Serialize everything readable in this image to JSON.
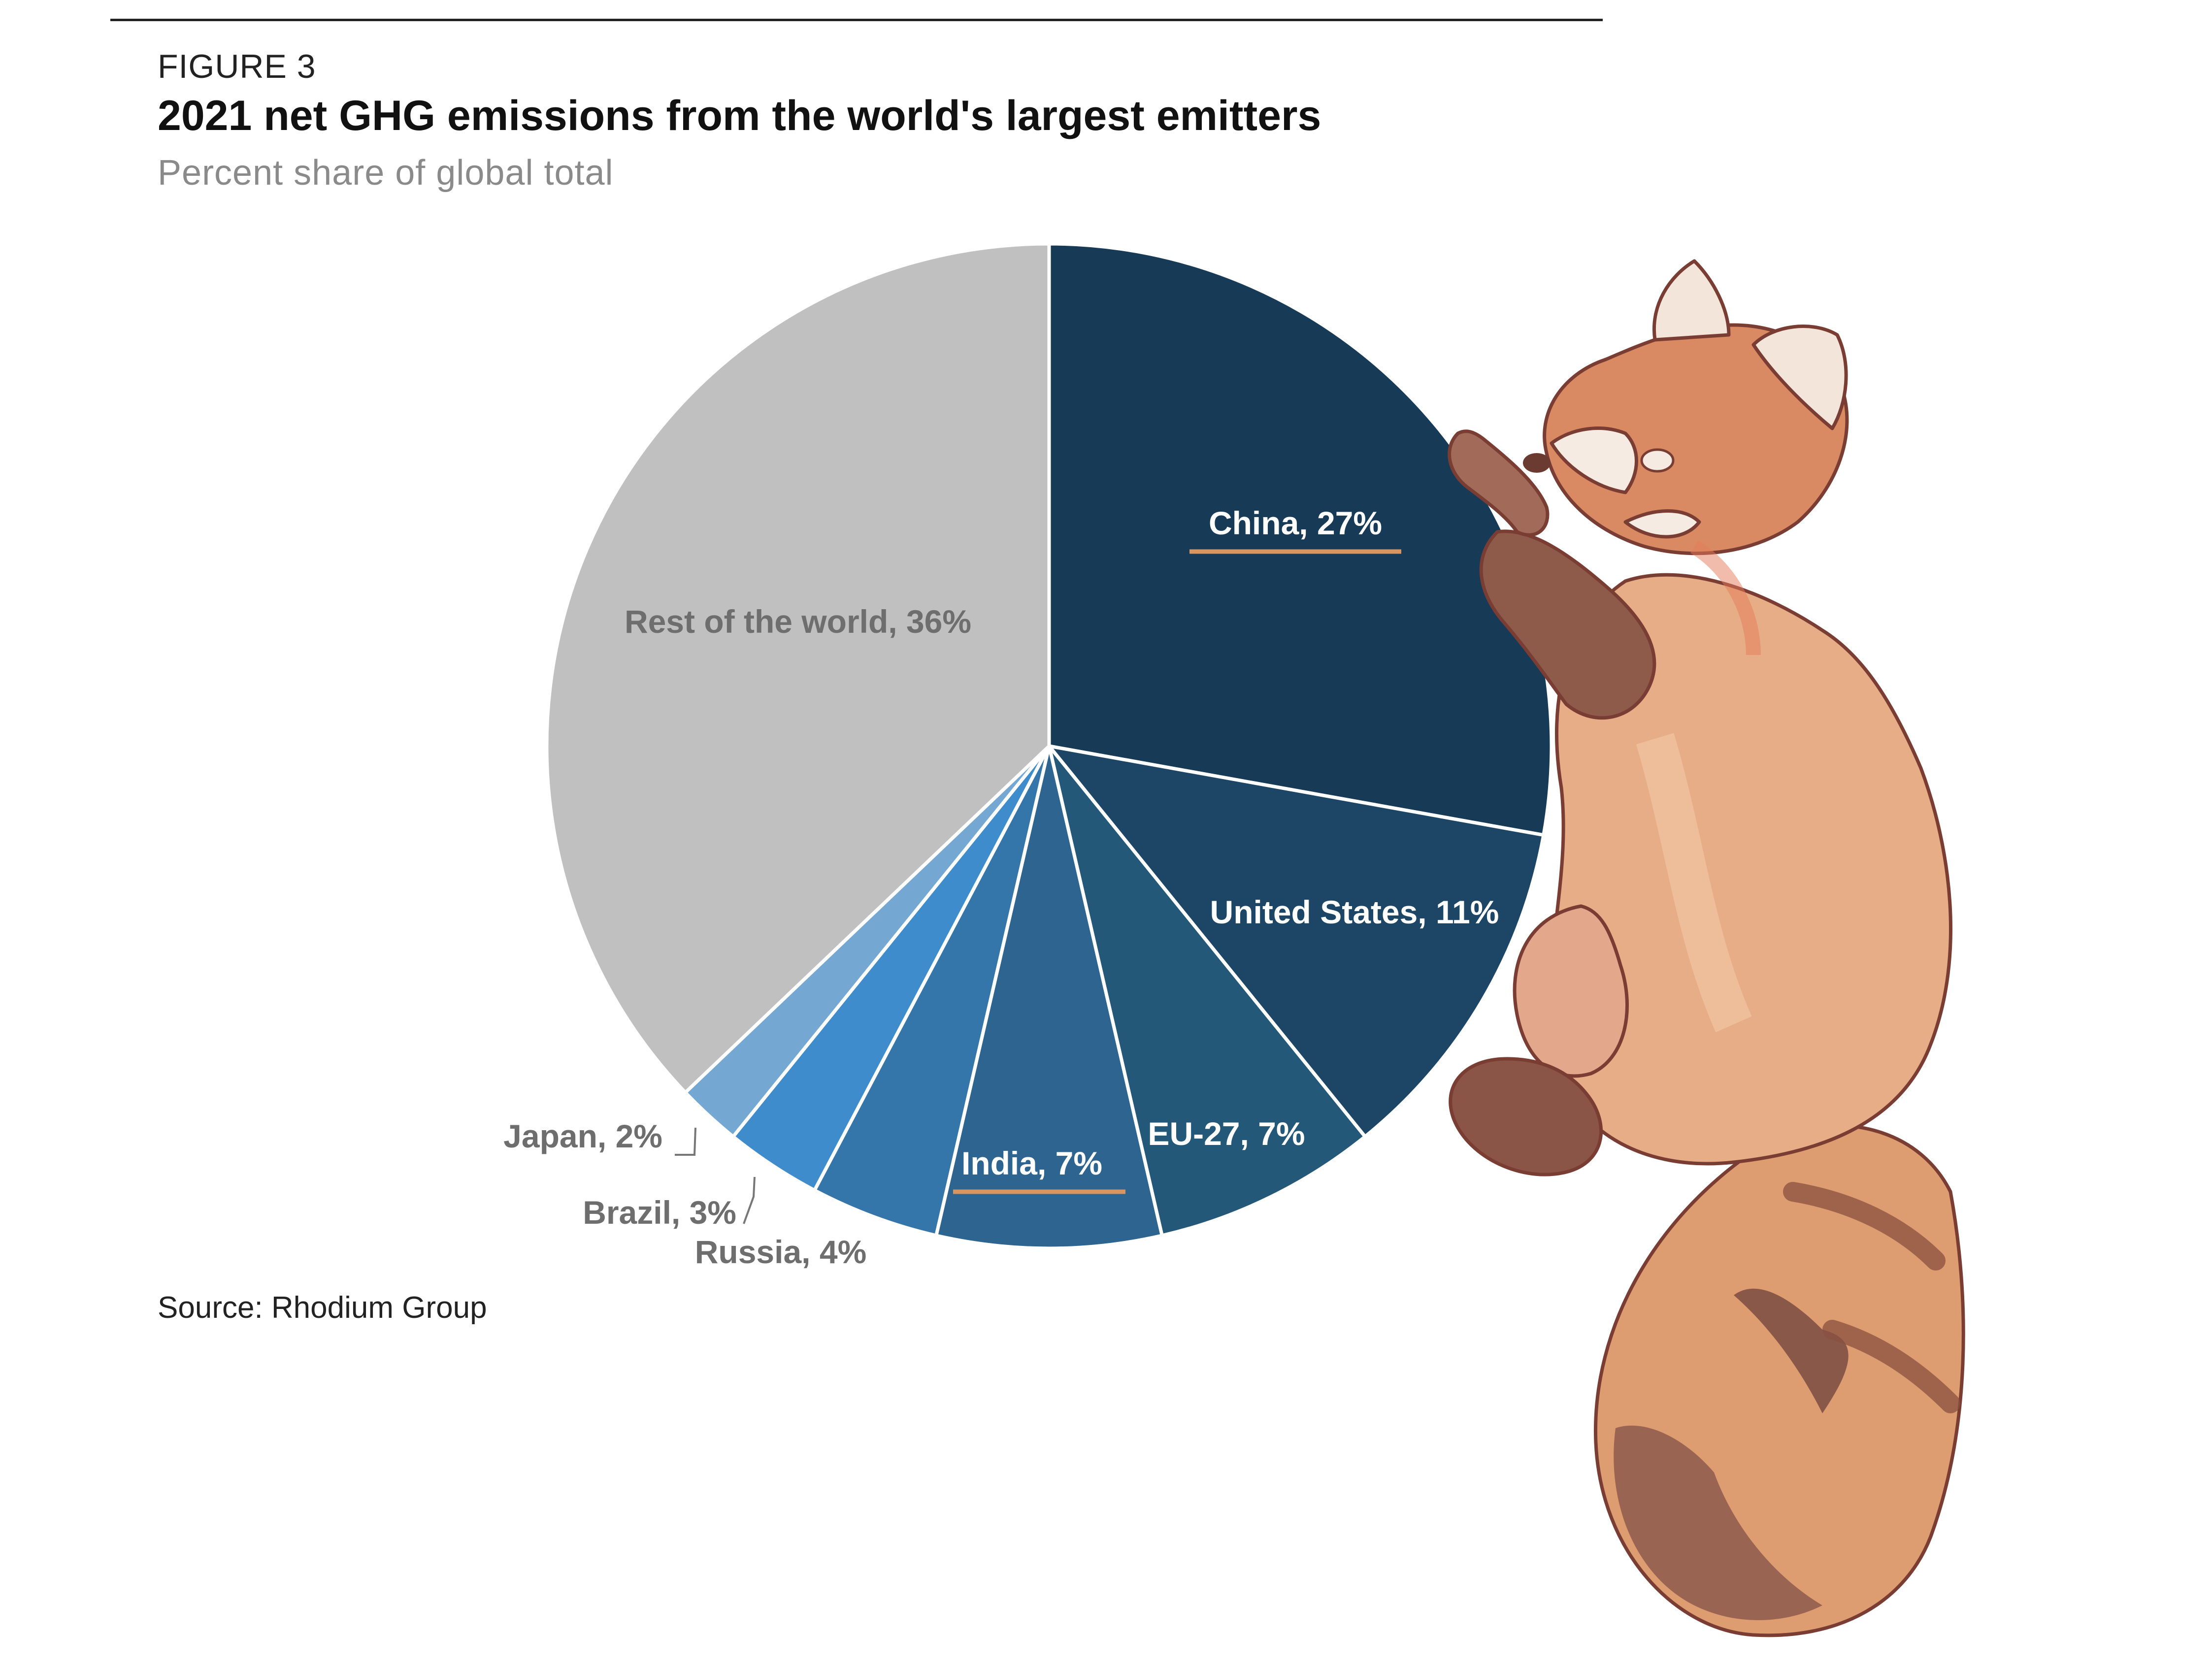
{
  "figure_label": "FIGURE 3",
  "title": "2021 net GHG emissions from the world's largest emitters",
  "subtitle": "Percent share of global total",
  "source": "Source: Rhodium Group",
  "chart_data": {
    "type": "pie",
    "title": "2021 net GHG emissions from the world's largest emitters",
    "subtitle": "Percent share of global total",
    "unit": "%",
    "slices": [
      {
        "name": "China",
        "value": 27,
        "label": "China, 27%",
        "color": "#173a57"
      },
      {
        "name": "United States",
        "value": 11,
        "label": "United States, 11%",
        "color": "#1c4566"
      },
      {
        "name": "EU-27",
        "value": 7,
        "label": "EU-27, 7%",
        "color": "#245878"
      },
      {
        "name": "India",
        "value": 7,
        "label": "India, 7%",
        "color": "#2d6490"
      },
      {
        "name": "Russia",
        "value": 4,
        "label": "Russia, 4%",
        "color": "#3475aa"
      },
      {
        "name": "Brazil",
        "value": 3,
        "label": "Brazil, 3%",
        "color": "#3e8ccc"
      },
      {
        "name": "Japan",
        "value": 2,
        "label": "Japan, 2%",
        "color": "#74a7d2"
      },
      {
        "name": "Rest of the world",
        "value": 36,
        "label": "Rest of the world, 36%",
        "color": "#c0c0c0"
      }
    ],
    "highlighted": [
      "China",
      "India"
    ],
    "highlight_color": "#d8955f"
  },
  "illustration": {
    "subject": "red panda",
    "colors": {
      "fur": "#e0a07a",
      "dark": "#8a5040",
      "outline": "#7a3d33"
    }
  }
}
